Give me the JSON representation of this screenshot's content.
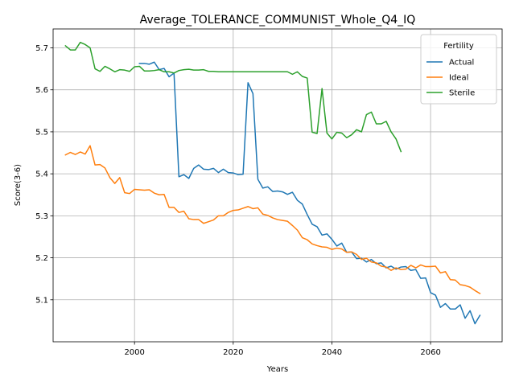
{
  "chart_data": {
    "type": "line",
    "title": "Average_TOLERANCE_COMMUNIST_Whole_Q4_IQ",
    "xlabel": "Years",
    "ylabel": "Score(3-6)",
    "xlim": [
      2084.0,
      2075.0
    ],
    "xlim_note": "",
    "x_range": [
      1983.5,
      2074.5
    ],
    "y_range": [
      5.0,
      5.745
    ],
    "xticks": [
      2000,
      2020,
      2040,
      2060
    ],
    "yticks": [
      5.1,
      5.2,
      5.3,
      5.4,
      5.5,
      5.6,
      5.7
    ],
    "grid": true,
    "legend": {
      "title": "Fertility",
      "position": "top-right"
    },
    "series": [
      {
        "name": "Actual",
        "color": "#1f77b4",
        "points": [
          [
            2001,
            5.663
          ],
          [
            2002,
            5.663
          ],
          [
            2003,
            5.661
          ],
          [
            2004,
            5.666
          ],
          [
            2005,
            5.648
          ],
          [
            2006,
            5.651
          ],
          [
            2007,
            5.631
          ],
          [
            2008,
            5.64
          ],
          [
            2009,
            5.393
          ],
          [
            2010,
            5.398
          ],
          [
            2011,
            5.389
          ],
          [
            2012,
            5.413
          ],
          [
            2013,
            5.421
          ],
          [
            2014,
            5.411
          ],
          [
            2015,
            5.41
          ],
          [
            2016,
            5.413
          ],
          [
            2017,
            5.403
          ],
          [
            2018,
            5.411
          ],
          [
            2019,
            5.403
          ],
          [
            2020,
            5.402
          ],
          [
            2021,
            5.398
          ],
          [
            2022,
            5.399
          ],
          [
            2023,
            5.617
          ],
          [
            2024,
            5.591
          ],
          [
            2025,
            5.387
          ],
          [
            2026,
            5.366
          ],
          [
            2027,
            5.369
          ],
          [
            2028,
            5.358
          ],
          [
            2029,
            5.359
          ],
          [
            2030,
            5.357
          ],
          [
            2031,
            5.351
          ],
          [
            2032,
            5.356
          ],
          [
            2033,
            5.337
          ],
          [
            2034,
            5.328
          ],
          [
            2035,
            5.303
          ],
          [
            2036,
            5.28
          ],
          [
            2037,
            5.274
          ],
          [
            2038,
            5.254
          ],
          [
            2039,
            5.257
          ],
          [
            2040,
            5.244
          ],
          [
            2041,
            5.228
          ],
          [
            2042,
            5.235
          ],
          [
            2043,
            5.213
          ],
          [
            2044,
            5.214
          ],
          [
            2045,
            5.198
          ],
          [
            2046,
            5.199
          ],
          [
            2047,
            5.19
          ],
          [
            2048,
            5.196
          ],
          [
            2049,
            5.186
          ],
          [
            2050,
            5.188
          ],
          [
            2051,
            5.176
          ],
          [
            2052,
            5.18
          ],
          [
            2053,
            5.173
          ],
          [
            2054,
            5.178
          ],
          [
            2055,
            5.179
          ],
          [
            2056,
            5.17
          ],
          [
            2057,
            5.172
          ],
          [
            2058,
            5.151
          ],
          [
            2059,
            5.152
          ],
          [
            2060,
            5.117
          ],
          [
            2061,
            5.111
          ],
          [
            2062,
            5.082
          ],
          [
            2063,
            5.091
          ],
          [
            2064,
            5.078
          ],
          [
            2065,
            5.078
          ],
          [
            2066,
            5.088
          ],
          [
            2067,
            5.056
          ],
          [
            2068,
            5.074
          ],
          [
            2069,
            5.043
          ],
          [
            2070,
            5.063
          ]
        ]
      },
      {
        "name": "Ideal",
        "color": "#ff7f0e",
        "points": [
          [
            1986,
            5.445
          ],
          [
            1987,
            5.451
          ],
          [
            1988,
            5.446
          ],
          [
            1989,
            5.452
          ],
          [
            1990,
            5.447
          ],
          [
            1991,
            5.467
          ],
          [
            1992,
            5.421
          ],
          [
            1993,
            5.422
          ],
          [
            1994,
            5.414
          ],
          [
            1995,
            5.391
          ],
          [
            1996,
            5.377
          ],
          [
            1997,
            5.391
          ],
          [
            1998,
            5.355
          ],
          [
            1999,
            5.353
          ],
          [
            2000,
            5.363
          ],
          [
            2001,
            5.362
          ],
          [
            2002,
            5.361
          ],
          [
            2003,
            5.362
          ],
          [
            2004,
            5.354
          ],
          [
            2005,
            5.35
          ],
          [
            2006,
            5.351
          ],
          [
            2007,
            5.32
          ],
          [
            2008,
            5.32
          ],
          [
            2009,
            5.308
          ],
          [
            2010,
            5.311
          ],
          [
            2011,
            5.293
          ],
          [
            2012,
            5.291
          ],
          [
            2013,
            5.291
          ],
          [
            2014,
            5.282
          ],
          [
            2015,
            5.286
          ],
          [
            2016,
            5.29
          ],
          [
            2017,
            5.3
          ],
          [
            2018,
            5.3
          ],
          [
            2019,
            5.308
          ],
          [
            2020,
            5.313
          ],
          [
            2021,
            5.314
          ],
          [
            2022,
            5.318
          ],
          [
            2023,
            5.322
          ],
          [
            2024,
            5.317
          ],
          [
            2025,
            5.319
          ],
          [
            2026,
            5.304
          ],
          [
            2027,
            5.301
          ],
          [
            2028,
            5.295
          ],
          [
            2029,
            5.291
          ],
          [
            2030,
            5.289
          ],
          [
            2031,
            5.287
          ],
          [
            2032,
            5.277
          ],
          [
            2033,
            5.266
          ],
          [
            2034,
            5.248
          ],
          [
            2035,
            5.243
          ],
          [
            2036,
            5.233
          ],
          [
            2037,
            5.229
          ],
          [
            2038,
            5.226
          ],
          [
            2039,
            5.225
          ],
          [
            2040,
            5.22
          ],
          [
            2041,
            5.223
          ],
          [
            2042,
            5.221
          ],
          [
            2043,
            5.213
          ],
          [
            2044,
            5.214
          ],
          [
            2045,
            5.208
          ],
          [
            2046,
            5.196
          ],
          [
            2047,
            5.199
          ],
          [
            2048,
            5.19
          ],
          [
            2049,
            5.188
          ],
          [
            2050,
            5.18
          ],
          [
            2051,
            5.178
          ],
          [
            2052,
            5.17
          ],
          [
            2053,
            5.176
          ],
          [
            2054,
            5.172
          ],
          [
            2055,
            5.173
          ],
          [
            2056,
            5.182
          ],
          [
            2057,
            5.176
          ],
          [
            2058,
            5.183
          ],
          [
            2059,
            5.179
          ],
          [
            2060,
            5.179
          ],
          [
            2061,
            5.18
          ],
          [
            2062,
            5.164
          ],
          [
            2063,
            5.167
          ],
          [
            2064,
            5.148
          ],
          [
            2065,
            5.147
          ],
          [
            2066,
            5.136
          ],
          [
            2067,
            5.134
          ],
          [
            2068,
            5.13
          ],
          [
            2069,
            5.122
          ],
          [
            2070,
            5.115
          ]
        ]
      },
      {
        "name": "Sterile",
        "color": "#2ca02c",
        "points": [
          [
            1986,
            5.705
          ],
          [
            1987,
            5.695
          ],
          [
            1988,
            5.695
          ],
          [
            1989,
            5.713
          ],
          [
            1990,
            5.708
          ],
          [
            1991,
            5.7
          ],
          [
            1992,
            5.65
          ],
          [
            1993,
            5.644
          ],
          [
            1994,
            5.656
          ],
          [
            1995,
            5.65
          ],
          [
            1996,
            5.643
          ],
          [
            1997,
            5.648
          ],
          [
            1998,
            5.647
          ],
          [
            1999,
            5.644
          ],
          [
            2000,
            5.655
          ],
          [
            2001,
            5.656
          ],
          [
            2002,
            5.645
          ],
          [
            2003,
            5.645
          ],
          [
            2004,
            5.646
          ],
          [
            2005,
            5.648
          ],
          [
            2006,
            5.643
          ],
          [
            2007,
            5.643
          ],
          [
            2008,
            5.64
          ],
          [
            2009,
            5.646
          ],
          [
            2010,
            5.648
          ],
          [
            2011,
            5.649
          ],
          [
            2012,
            5.647
          ],
          [
            2013,
            5.647
          ],
          [
            2014,
            5.648
          ],
          [
            2015,
            5.644
          ],
          [
            2016,
            5.644
          ],
          [
            2017,
            5.643
          ],
          [
            2018,
            5.643
          ],
          [
            2019,
            5.643
          ],
          [
            2020,
            5.643
          ],
          [
            2021,
            5.643
          ],
          [
            2022,
            5.643
          ],
          [
            2023,
            5.643
          ],
          [
            2024,
            5.643
          ],
          [
            2025,
            5.643
          ],
          [
            2026,
            5.643
          ],
          [
            2027,
            5.643
          ],
          [
            2028,
            5.643
          ],
          [
            2029,
            5.643
          ],
          [
            2030,
            5.643
          ],
          [
            2031,
            5.643
          ],
          [
            2032,
            5.637
          ],
          [
            2033,
            5.643
          ],
          [
            2034,
            5.632
          ],
          [
            2035,
            5.628
          ],
          [
            2036,
            5.499
          ],
          [
            2037,
            5.496
          ],
          [
            2038,
            5.603
          ],
          [
            2039,
            5.497
          ],
          [
            2040,
            5.483
          ],
          [
            2041,
            5.499
          ],
          [
            2042,
            5.497
          ],
          [
            2043,
            5.486
          ],
          [
            2044,
            5.493
          ],
          [
            2045,
            5.505
          ],
          [
            2046,
            5.5
          ],
          [
            2047,
            5.541
          ],
          [
            2048,
            5.547
          ],
          [
            2049,
            5.519
          ],
          [
            2050,
            5.519
          ],
          [
            2051,
            5.525
          ],
          [
            2052,
            5.5
          ],
          [
            2053,
            5.483
          ],
          [
            2054,
            5.453
          ]
        ]
      }
    ]
  }
}
